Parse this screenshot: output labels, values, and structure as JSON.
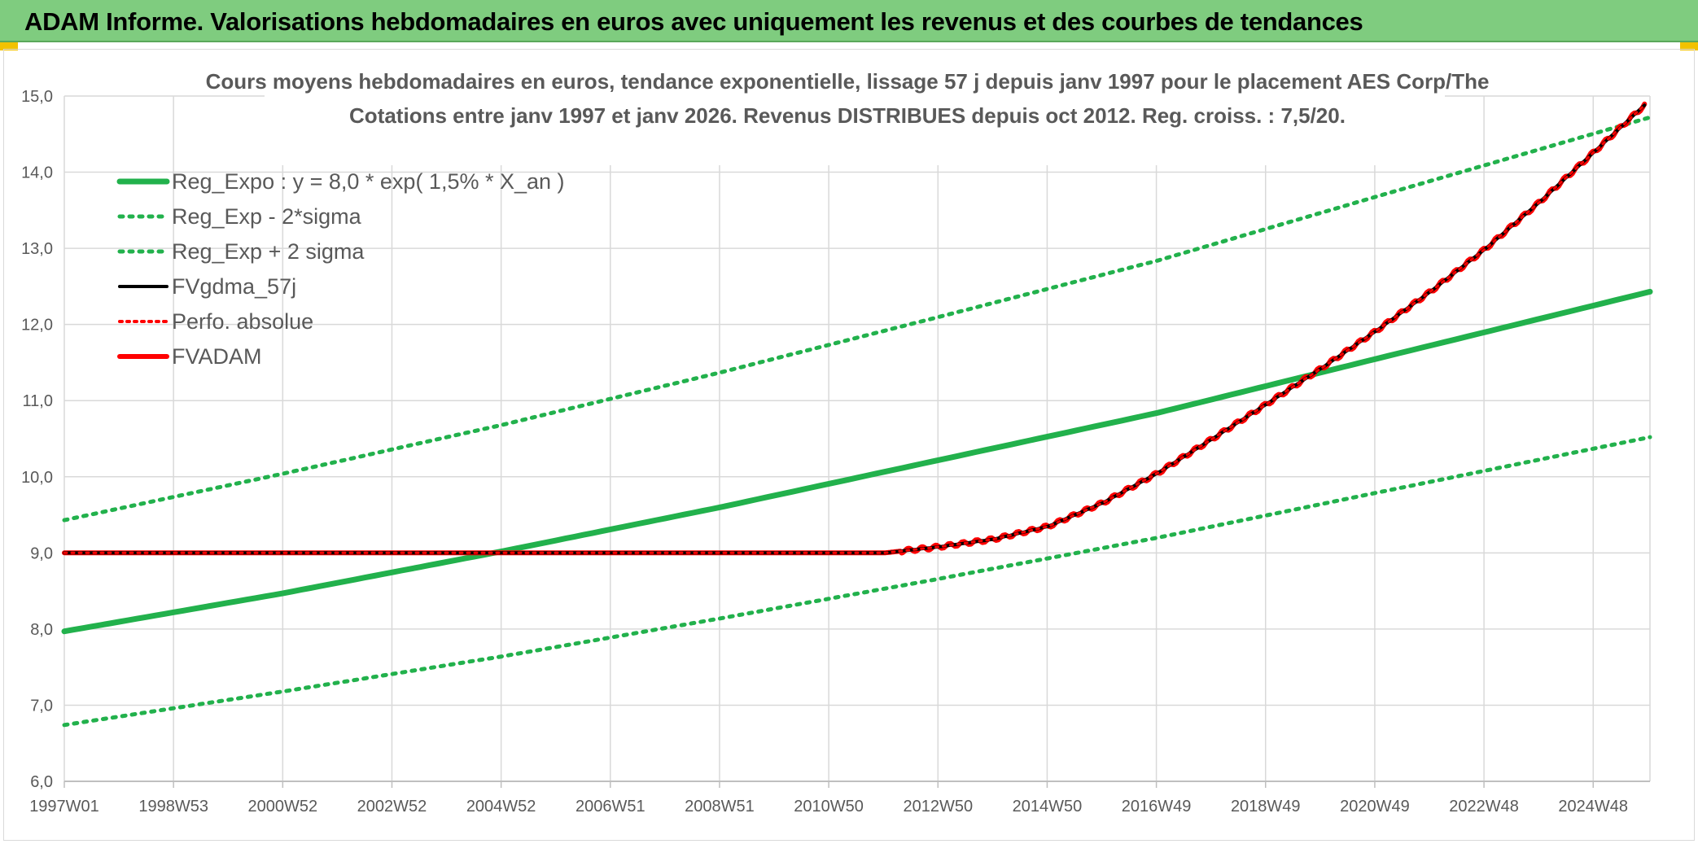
{
  "header": {
    "title": "ADAM Informe. Valorisations hebdomadaires en euros avec uniquement les revenus et des courbes de tendances"
  },
  "chart_data": {
    "type": "line",
    "title_line1": "Cours moyens hebdomadaires en euros, tendance exponentielle, lissage 57 j depuis janv 1997 pour le placement AES Corp/The",
    "title_line2": "Cotations entre janv 1997 et janv 2026. Revenus DISTRIBUES depuis oct 2012. Reg. croiss. : 7,5/20.",
    "x_ticks": [
      "1997W01",
      "1998W53",
      "2000W52",
      "2002W52",
      "2004W52",
      "2006W51",
      "2008W51",
      "2010W50",
      "2012W50",
      "2014W50",
      "2016W49",
      "2018W49",
      "2020W49",
      "2022W48",
      "2024W48"
    ],
    "y_ticks": [
      "6,0",
      "7,0",
      "8,0",
      "9,0",
      "10,0",
      "11,0",
      "12,0",
      "13,0",
      "14,0",
      "15,0"
    ],
    "ylim": [
      6,
      15
    ],
    "xlim": [
      1997.0,
      2026.0
    ],
    "grid": true,
    "legend_position": "top-left",
    "series": [
      {
        "name": "Reg_Expo : y = 8,0 * exp( 1,5% *  X_an )",
        "color": "#22b14c",
        "style": "solid",
        "x": [
          1997.0,
          2001.0,
          2005.0,
          2009.0,
          2013.0,
          2017.0,
          2021.0,
          2026.0
        ],
        "y": [
          7.97,
          8.47,
          9.02,
          9.6,
          10.22,
          10.84,
          11.55,
          12.43
        ]
      },
      {
        "name": "Reg_Exp - 2*sigma",
        "color": "#22b14c",
        "style": "dotted",
        "x": [
          1997.0,
          2001.0,
          2005.0,
          2009.0,
          2013.0,
          2017.0,
          2021.0,
          2026.0
        ],
        "y": [
          6.74,
          7.18,
          7.64,
          8.14,
          8.66,
          9.2,
          9.79,
          10.52
        ]
      },
      {
        "name": "Reg_Exp + 2 sigma",
        "color": "#22b14c",
        "style": "dotted",
        "x": [
          1997.0,
          2001.0,
          2005.0,
          2009.0,
          2013.0,
          2017.0,
          2021.0,
          2026.0
        ],
        "y": [
          9.43,
          10.04,
          10.68,
          11.37,
          12.1,
          12.84,
          13.68,
          14.72
        ]
      },
      {
        "name": "FVgdma_57j",
        "color": "#000000",
        "style": "solid",
        "x": [
          1997.0,
          2012.0,
          2012.5,
          2013.0,
          2014.0,
          2015.0,
          2016.0,
          2017.0,
          2018.0,
          2019.0,
          2020.0,
          2021.0,
          2022.0,
          2023.0,
          2024.0,
          2025.0,
          2025.9
        ],
        "y": [
          9.0,
          9.0,
          9.04,
          9.08,
          9.18,
          9.35,
          9.66,
          10.05,
          10.5,
          10.96,
          11.43,
          11.92,
          12.44,
          13.0,
          13.62,
          14.28,
          14.88
        ]
      },
      {
        "name": "Perfo. absolue",
        "color": "#ff0000",
        "style": "dotted",
        "x": [
          1997.0,
          2012.0,
          2012.5,
          2013.0,
          2014.0,
          2015.0,
          2016.0,
          2017.0,
          2018.0,
          2019.0,
          2020.0,
          2021.0,
          2022.0,
          2023.0,
          2024.0,
          2025.0,
          2025.9
        ],
        "y": [
          9.0,
          9.0,
          9.04,
          9.08,
          9.18,
          9.35,
          9.66,
          10.05,
          10.5,
          10.96,
          11.43,
          11.92,
          12.44,
          13.0,
          13.62,
          14.28,
          14.88
        ]
      },
      {
        "name": "FVADAM",
        "color": "#ff0000",
        "style": "solid",
        "x": [
          1997.0,
          2012.0,
          2012.5,
          2013.0,
          2014.0,
          2015.0,
          2016.0,
          2017.0,
          2018.0,
          2019.0,
          2020.0,
          2021.0,
          2022.0,
          2023.0,
          2024.0,
          2025.0,
          2025.9
        ],
        "y": [
          9.0,
          9.0,
          9.04,
          9.08,
          9.18,
          9.35,
          9.66,
          10.05,
          10.5,
          10.96,
          11.43,
          11.92,
          12.44,
          13.0,
          13.62,
          14.28,
          14.88
        ]
      }
    ]
  }
}
